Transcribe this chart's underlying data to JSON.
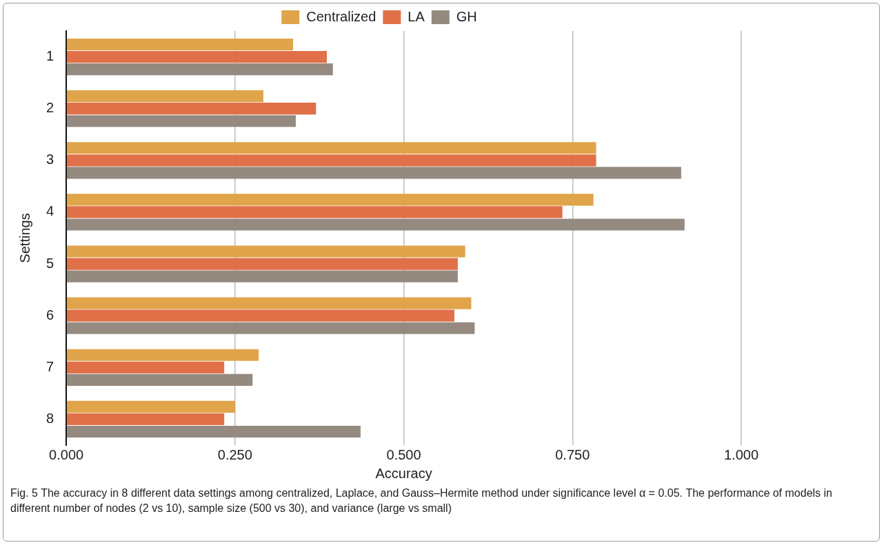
{
  "chart_data": {
    "type": "bar",
    "orientation": "horizontal",
    "ylabel": "Settings",
    "xlabel": "Accuracy",
    "categories": [
      "1",
      "2",
      "3",
      "4",
      "5",
      "6",
      "7",
      "8"
    ],
    "series": [
      {
        "name": "Centralized",
        "color": "#e0a44a",
        "values": [
          0.336,
          0.292,
          0.785,
          0.781,
          0.591,
          0.6,
          0.285,
          0.25
        ]
      },
      {
        "name": "LA",
        "color": "#e07048",
        "values": [
          0.386,
          0.37,
          0.785,
          0.735,
          0.58,
          0.575,
          0.234,
          0.234
        ]
      },
      {
        "name": "GH",
        "color": "#958a80",
        "values": [
          0.395,
          0.34,
          0.911,
          0.916,
          0.58,
          0.605,
          0.276,
          0.436
        ]
      }
    ],
    "xlim": [
      0,
      1
    ],
    "xticks": [
      {
        "value": 0,
        "label": "0.000"
      },
      {
        "value": 0.25,
        "label": "0.250"
      },
      {
        "value": 0.5,
        "label": "0.500"
      },
      {
        "value": 0.75,
        "label": "0.750"
      },
      {
        "value": 1,
        "label": "1.000"
      }
    ],
    "grid": "x",
    "legend": "top",
    "annotations": [
      "Fig. 5 The accuracy in 8 different data settings among centralized, Laplace, and Gauss–Hermite method under significance level α = 0.05. The performance of models in different number of nodes (2 vs 10), sample size (500 vs 30), and variance (large vs small)"
    ]
  }
}
